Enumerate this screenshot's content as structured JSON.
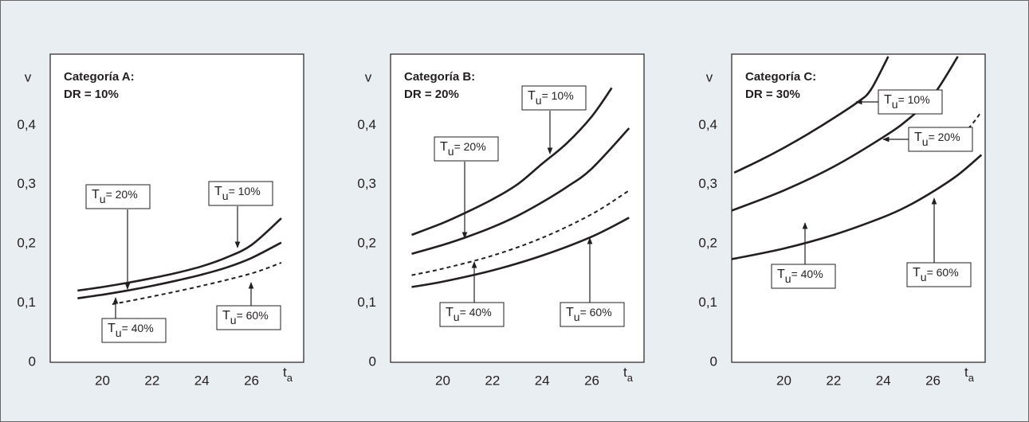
{
  "chart_data": [
    {
      "type": "line",
      "title": "Categoría A:",
      "subtitle": "DR = 10%",
      "ylabel": "v",
      "xlabel": {
        "text": "t",
        "sub": "a"
      },
      "xlim": [
        17.9,
        28.1
      ],
      "ylim": [
        0,
        0.52
      ],
      "xticks": [
        20,
        22,
        24,
        26
      ],
      "yticks": [
        0,
        {
          "value": 0.1,
          "label": "0,1"
        },
        {
          "value": 0.2,
          "label": "0,2"
        },
        {
          "value": 0.3,
          "label": "0,3"
        },
        {
          "value": 0.4,
          "label": "0,4"
        }
      ],
      "series": [
        {
          "color": "#231f20",
          "dashed": false,
          "x": [
            19,
            20,
            21,
            22,
            23,
            24,
            25,
            26,
            27.2
          ],
          "values": [
            0.121,
            0.127,
            0.134,
            0.142,
            0.151,
            0.162,
            0.177,
            0.198,
            0.243
          ]
        },
        {
          "color": "#231f20",
          "dashed": false,
          "x": [
            19,
            20,
            21,
            22,
            23,
            24,
            25,
            26,
            27.2
          ],
          "values": [
            0.108,
            0.114,
            0.121,
            0.129,
            0.138,
            0.148,
            0.16,
            0.176,
            0.202
          ]
        },
        {
          "color": "#231f20",
          "dashed": true,
          "x": [
            20.4,
            22,
            24,
            26,
            27.2
          ],
          "values": [
            0.098,
            0.111,
            0.129,
            0.15,
            0.168
          ]
        }
      ],
      "annotations": [
        {
          "text": "T",
          "sub": "u",
          "rest": "= 20%"
        },
        {
          "text": "T",
          "sub": "u",
          "rest": "= 10%"
        },
        {
          "text": "T",
          "sub": "u",
          "rest": "= 40%"
        },
        {
          "text": "T",
          "sub": "u",
          "rest": "= 60%"
        }
      ]
    },
    {
      "type": "line",
      "title": "Categoría B:",
      "subtitle": "DR = 20%",
      "ylabel": "v",
      "xlabel": {
        "text": "t",
        "sub": "a"
      },
      "xlim": [
        17.9,
        28.1
      ],
      "ylim": [
        0,
        0.52
      ],
      "xticks": [
        20,
        22,
        24,
        26
      ],
      "yticks": [
        0,
        {
          "value": 0.1,
          "label": "0,1"
        },
        {
          "value": 0.2,
          "label": "0,2"
        },
        {
          "value": 0.3,
          "label": "0,3"
        },
        {
          "value": 0.4,
          "label": "0,4"
        }
      ],
      "series": [
        {
          "color": "#231f20",
          "dashed": false,
          "x": [
            18.75,
            20,
            21,
            22,
            23,
            24,
            25,
            26,
            26.8
          ],
          "values": [
            0.215,
            0.235,
            0.254,
            0.275,
            0.3,
            0.335,
            0.37,
            0.415,
            0.463
          ]
        },
        {
          "color": "#231f20",
          "dashed": false,
          "x": [
            18.75,
            20,
            21,
            22,
            23,
            24,
            25,
            26,
            27.5
          ],
          "values": [
            0.183,
            0.198,
            0.212,
            0.228,
            0.247,
            0.27,
            0.296,
            0.327,
            0.395
          ]
        },
        {
          "color": "#231f20",
          "dashed": true,
          "x": [
            18.75,
            20,
            22,
            24,
            26,
            27.5
          ],
          "values": [
            0.147,
            0.158,
            0.18,
            0.21,
            0.25,
            0.29
          ]
        },
        {
          "color": "#231f20",
          "dashed": false,
          "x": [
            18.75,
            20,
            22,
            24,
            26,
            27.5
          ],
          "values": [
            0.127,
            0.136,
            0.155,
            0.18,
            0.212,
            0.244
          ]
        }
      ],
      "annotations": [
        {
          "text": "T",
          "sub": "u",
          "rest": "= 10%"
        },
        {
          "text": "T",
          "sub": "u",
          "rest": "= 20%"
        },
        {
          "text": "T",
          "sub": "u",
          "rest": "= 40%"
        },
        {
          "text": "T",
          "sub": "u",
          "rest": "= 60%"
        }
      ]
    },
    {
      "type": "line",
      "title": "Categoría C:",
      "subtitle": "DR = 30%",
      "ylabel": "v",
      "xlabel": {
        "text": "t",
        "sub": "a"
      },
      "xlim": [
        17.9,
        28.1
      ],
      "ylim": [
        0,
        0.52
      ],
      "xticks": [
        20,
        22,
        24,
        26
      ],
      "yticks": [
        0,
        {
          "value": 0.1,
          "label": "0,1"
        },
        {
          "value": 0.2,
          "label": "0,2"
        },
        {
          "value": 0.3,
          "label": "0,3"
        },
        {
          "value": 0.4,
          "label": "0,4"
        }
      ],
      "series": [
        {
          "color": "#231f20",
          "dashed": false,
          "x": [
            18,
            19,
            20,
            21,
            22,
            23,
            23.5,
            24.2
          ],
          "values": [
            0.32,
            0.34,
            0.362,
            0.386,
            0.412,
            0.44,
            0.46,
            0.516
          ]
        },
        {
          "color": "#231f20",
          "dashed": false,
          "x": [
            17.9,
            20,
            22,
            24,
            25,
            26,
            27
          ],
          "values": [
            0.256,
            0.29,
            0.33,
            0.38,
            0.41,
            0.45,
            0.516
          ]
        },
        {
          "color": "#231f20",
          "dashed": true,
          "x": [
            27,
            27.5,
            27.95
          ],
          "values": [
            0.378,
            0.398,
            0.423
          ]
        },
        {
          "color": "#231f20",
          "dashed": false,
          "x": [
            17.9,
            20,
            22,
            24,
            25,
            26,
            27,
            27.95
          ],
          "values": [
            0.174,
            0.192,
            0.215,
            0.245,
            0.264,
            0.288,
            0.316,
            0.35
          ]
        }
      ],
      "annotations": [
        {
          "text": "T",
          "sub": "u",
          "rest": "= 10%"
        },
        {
          "text": "T",
          "sub": "u",
          "rest": "= 20%"
        },
        {
          "text": "T",
          "sub": "u",
          "rest": "= 40%"
        },
        {
          "text": "T",
          "sub": "u",
          "rest": "= 60%"
        }
      ]
    }
  ]
}
